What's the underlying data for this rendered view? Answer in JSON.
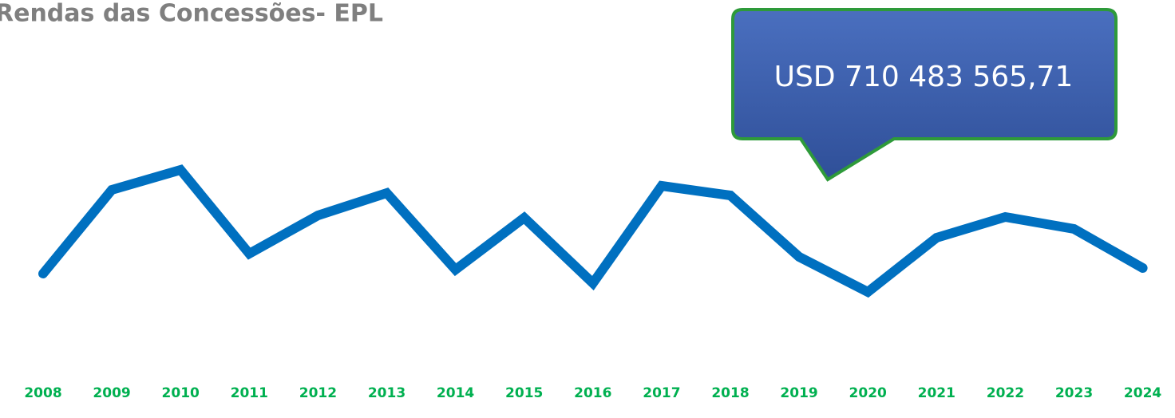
{
  "chart_data": {
    "type": "line",
    "title": "Rendas das Concessões- EPL",
    "annotation": "USD 710 483 565,71",
    "categories": [
      "2008",
      "2009",
      "2010",
      "2011",
      "2012",
      "2013",
      "2014",
      "2015",
      "2016",
      "2017",
      "2018",
      "2019",
      "2020",
      "2021",
      "2022",
      "2023",
      "2024"
    ],
    "values": [
      29.25,
      55.5,
      61.75,
      35.5,
      47.5,
      54.5,
      30.5,
      46.75,
      26.25,
      56.75,
      53.75,
      34.5,
      23.5,
      40.5,
      47,
      43.25,
      31
    ],
    "color": "#0070c0",
    "category_color": "#00b050",
    "ylim": [
      0,
      100
    ]
  }
}
